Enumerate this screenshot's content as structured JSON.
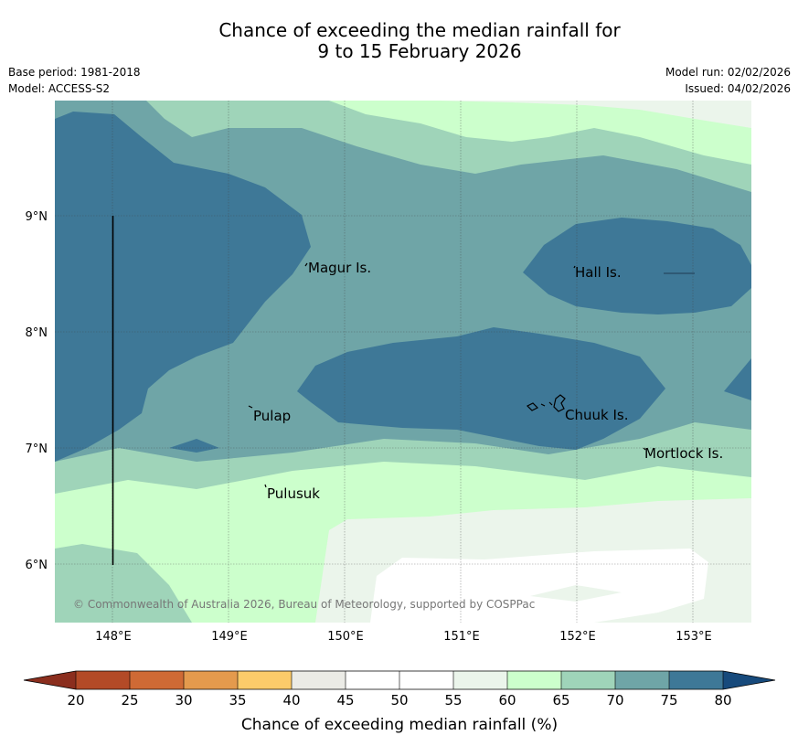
{
  "title": {
    "line1": "Chance of exceeding the median rainfall for",
    "line2": "9 to 15 February 2026"
  },
  "meta_left": {
    "base_period": "Base period: 1981-2018",
    "model": "Model: ACCESS-S2"
  },
  "meta_right": {
    "model_run": "Model run: 02/02/2026",
    "issued": "Issued: 04/02/2026"
  },
  "map": {
    "lat_labels": [
      "9°N",
      "8°N",
      "7°N",
      "6°N"
    ],
    "lon_labels": [
      "148°E",
      "149°E",
      "150°E",
      "151°E",
      "152°E",
      "153°E"
    ],
    "islands": [
      "Magur Is.",
      "Hall Is.",
      "Pulap",
      "Chuuk Is.",
      "Mortlock Is.",
      "Pulusuk"
    ],
    "copyright": "© Commonwealth of Australia 2026, Bureau of Meteorology, supported by COSPPac"
  },
  "colorbar": {
    "ticks": [
      "20",
      "25",
      "30",
      "35",
      "40",
      "45",
      "50",
      "55",
      "60",
      "65",
      "70",
      "75",
      "80"
    ],
    "label": "Chance of exceeding median rainfall (%)",
    "colors": {
      "below_20": "#8b2e1e",
      "c20_25": "#b34a27",
      "c25_30": "#cf6a35",
      "c30_35": "#e49a4d",
      "c35_40": "#fccb6a",
      "c40_45": "#ebebe6",
      "c45_50": "#ffffff",
      "c50_55": "#ffffff",
      "c55_60": "#ebf5eb",
      "c60_65": "#ccffcc",
      "c65_70": "#9fd4b9",
      "c70_75": "#6fa5a7",
      "c75_80": "#3e7897",
      "above_80": "#174a7c"
    }
  }
}
